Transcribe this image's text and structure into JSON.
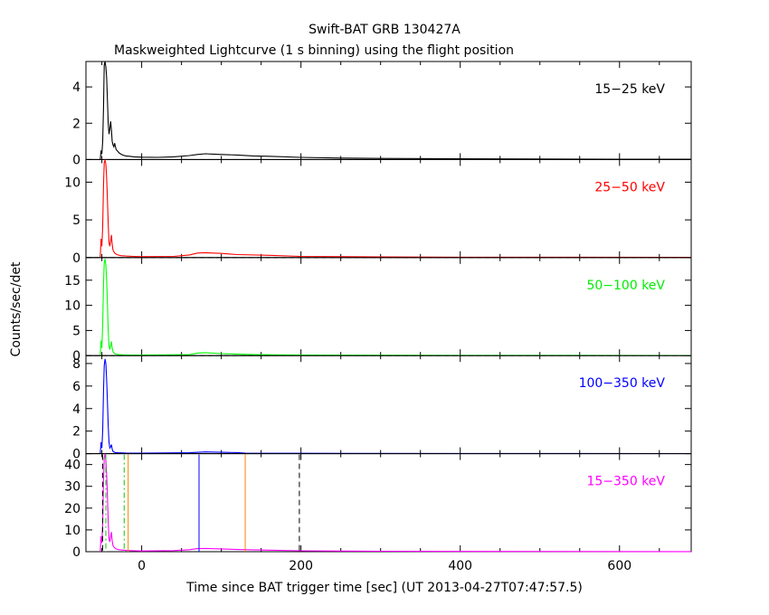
{
  "chart_data": {
    "type": "line",
    "title": "Swift-BAT GRB 130427A",
    "subtitle": "Maskweighted Lightcurve (1 s binning) using the flight position",
    "xlabel": "Time since BAT trigger time [sec] (UT 2013-04-27T07:47:57.5)",
    "ylabel": "Counts/sec/det",
    "xlim": [
      -70,
      690
    ],
    "x_ticks": [
      0,
      200,
      400,
      600
    ],
    "panels": [
      {
        "name": "15-25 keV",
        "label": "15−25 keV",
        "color": "#000000",
        "ylim": [
          0,
          5.4
        ],
        "y_ticks": [
          0,
          2,
          4
        ],
        "x": [
          -52,
          -51,
          -50,
          -49,
          -48,
          -47,
          -46,
          -45,
          -44,
          -43,
          -42,
          -41,
          -40,
          -39,
          -38,
          -37,
          -36,
          -35,
          -34,
          -33,
          -32,
          -30,
          -28,
          -26,
          -24,
          -20,
          -15,
          -10,
          0,
          20,
          40,
          60,
          70,
          80,
          90,
          100,
          120,
          140,
          160,
          200,
          250,
          300,
          400,
          500,
          600,
          690
        ],
        "y": [
          0,
          0.5,
          0.3,
          1.0,
          2.8,
          5.2,
          5.4,
          5.1,
          4.5,
          3.2,
          2.0,
          1.4,
          1.7,
          2.1,
          1.6,
          1.0,
          0.8,
          0.7,
          0.9,
          0.7,
          0.55,
          0.45,
          0.35,
          0.3,
          0.25,
          0.2,
          0.18,
          0.15,
          0.13,
          0.12,
          0.15,
          0.22,
          0.28,
          0.32,
          0.3,
          0.28,
          0.25,
          0.2,
          0.18,
          0.12,
          0.08,
          0.06,
          0.04,
          0.03,
          0.02,
          0.02
        ]
      },
      {
        "name": "25-50 keV",
        "label": "25−50 keV",
        "color": "#ff0000",
        "ylim": [
          0,
          13
        ],
        "y_ticks": [
          0,
          5,
          10
        ],
        "x": [
          -52,
          -51,
          -50,
          -49,
          -48,
          -47,
          -46,
          -45,
          -44,
          -43,
          -42,
          -41,
          -40,
          -39,
          -38,
          -37,
          -36,
          -35,
          -34,
          -32,
          -30,
          -26,
          -20,
          -10,
          0,
          40,
          60,
          70,
          80,
          100,
          120,
          160,
          200,
          300,
          400,
          690
        ],
        "y": [
          0,
          2.5,
          1.5,
          4.0,
          9.5,
          12.6,
          12.9,
          12.4,
          10.5,
          7.5,
          4.5,
          2.0,
          1.5,
          2.2,
          3.0,
          1.8,
          1.0,
          0.8,
          0.6,
          0.45,
          0.35,
          0.25,
          0.2,
          0.15,
          0.12,
          0.15,
          0.35,
          0.6,
          0.65,
          0.55,
          0.4,
          0.3,
          0.15,
          0.08,
          0.05,
          0.03
        ]
      },
      {
        "name": "50-100 keV",
        "label": "50−100 keV",
        "color": "#00ff00",
        "ylim": [
          0,
          19.5
        ],
        "y_ticks": [
          0,
          5,
          10,
          15
        ],
        "x": [
          -52,
          -51,
          -50,
          -49,
          -48,
          -47,
          -46,
          -45,
          -44,
          -43,
          -42,
          -41,
          -40,
          -39,
          -38,
          -37,
          -36,
          -35,
          -34,
          -32,
          -30,
          -20,
          0,
          60,
          70,
          80,
          100,
          140,
          200,
          400,
          690
        ],
        "y": [
          0,
          3.0,
          1.5,
          6.0,
          14.0,
          18.5,
          19.2,
          18.0,
          15.0,
          10.0,
          5.0,
          2.0,
          1.2,
          2.0,
          2.8,
          1.5,
          0.8,
          0.6,
          0.4,
          0.3,
          0.2,
          0.15,
          0.1,
          0.2,
          0.5,
          0.6,
          0.4,
          0.2,
          0.1,
          0.05,
          0.03
        ]
      },
      {
        "name": "100-350 keV",
        "label": "100−350 keV",
        "color": "#0000ff",
        "ylim": [
          0,
          8.7
        ],
        "y_ticks": [
          0,
          2,
          4,
          6,
          8
        ],
        "x": [
          -52,
          -51,
          -50,
          -49,
          -48,
          -47,
          -46,
          -45,
          -44,
          -43,
          -42,
          -41,
          -40,
          -39,
          -38,
          -37,
          -36,
          -35,
          -33,
          -30,
          -20,
          0,
          60,
          80,
          100,
          120,
          130,
          200,
          400,
          690
        ],
        "y": [
          0,
          1.0,
          0.5,
          2.0,
          5.5,
          7.8,
          8.4,
          8.0,
          6.5,
          4.5,
          2.5,
          1.0,
          0.5,
          0.6,
          0.8,
          0.4,
          0.2,
          0.15,
          0.1,
          0.08,
          0.06,
          0.05,
          0.08,
          0.15,
          0.12,
          0.1,
          0.05,
          0.03,
          0.02,
          0.01
        ]
      },
      {
        "name": "15-350 keV",
        "label": "15−350 keV",
        "color": "#ff00ff",
        "ylim": [
          0,
          45
        ],
        "y_ticks": [
          0,
          10,
          20,
          30,
          40
        ],
        "x": [
          -52,
          -51,
          -50,
          -49,
          -48,
          -47,
          -46,
          -45,
          -44,
          -43,
          -42,
          -41,
          -40,
          -39,
          -38,
          -37,
          -36,
          -35,
          -34,
          -32,
          -30,
          -26,
          -20,
          -10,
          0,
          40,
          60,
          70,
          80,
          100,
          120,
          160,
          200,
          300,
          400,
          690
        ],
        "y": [
          0,
          7.0,
          4.0,
          13.0,
          32.0,
          43.0,
          45.0,
          42.0,
          35.0,
          25.0,
          14.0,
          6.0,
          4.5,
          7.0,
          9.0,
          5.0,
          2.8,
          2.2,
          1.8,
          1.3,
          1.0,
          0.8,
          0.6,
          0.45,
          0.35,
          0.5,
          0.9,
          1.4,
          1.5,
          1.3,
          1.0,
          0.7,
          0.4,
          0.2,
          0.12,
          0.05
        ]
      }
    ],
    "markers": [
      {
        "x": -49,
        "color": "#000000",
        "style": "dashed"
      },
      {
        "x": -45,
        "color": "#00cc00",
        "style": "dashdot"
      },
      {
        "x": -22,
        "color": "#00cc00",
        "style": "dashdot"
      },
      {
        "x": -17,
        "color": "#ff8000",
        "style": "solid"
      },
      {
        "x": 72,
        "color": "#0000ff",
        "style": "solid"
      },
      {
        "x": 130,
        "color": "#ff8000",
        "style": "solid"
      },
      {
        "x": 198,
        "color": "#000000",
        "style": "dashed"
      }
    ]
  }
}
